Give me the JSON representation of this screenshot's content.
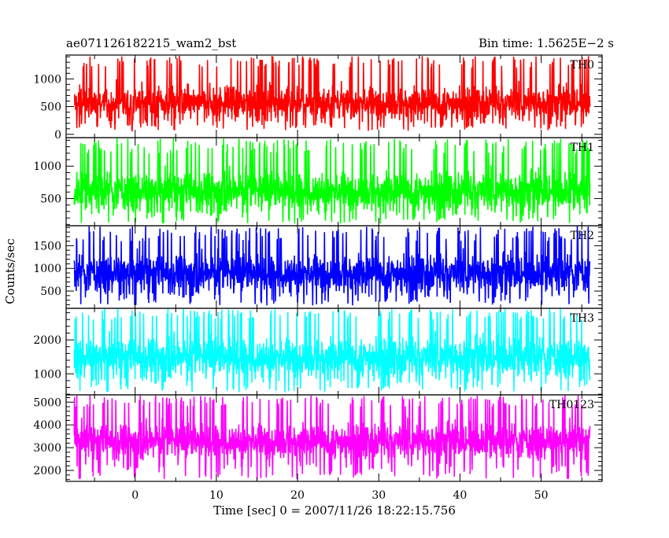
{
  "chart_data": {
    "type": "line",
    "title_left": "ae071126182215_wam2_bst",
    "title_right": "Bin time: 1.5625E−2 s",
    "xlabel": "Time [sec] 0 = 2007/11/26 18:22:15.756",
    "ylabel": "Counts/sec",
    "xlim": [
      -8.5,
      57.5
    ],
    "data_range": [
      -7.5,
      56.0
    ],
    "x_ticks": [
      0,
      10,
      20,
      30,
      40,
      50
    ],
    "series": [
      {
        "name": "TH0",
        "color": "#ff0000",
        "ylim": [
          -60,
          1430
        ],
        "y_ticks": [
          0,
          500,
          1000
        ],
        "y_minor_step": 100,
        "baseline": 570,
        "spread": 230,
        "low": 60,
        "high": 1420,
        "peak_typical": 1200
      },
      {
        "name": "TH1",
        "color": "#00ff00",
        "ylim": [
          80,
          1440
        ],
        "y_ticks": [
          500,
          1000
        ],
        "y_minor_step": 100,
        "baseline": 620,
        "spread": 230,
        "low": 110,
        "high": 1430,
        "peak_typical": 1200
      },
      {
        "name": "TH2",
        "color": "#0000ff",
        "ylim": [
          120,
          1940
        ],
        "y_ticks": [
          500,
          1000,
          1500
        ],
        "y_minor_step": 100,
        "baseline": 900,
        "spread": 320,
        "low": 180,
        "high": 1930,
        "peak_typical": 1600
      },
      {
        "name": "TH3",
        "color": "#00ffff",
        "ylim": [
          380,
          2930
        ],
        "y_ticks": [
          1000,
          2000
        ],
        "y_minor_step": 200,
        "baseline": 1500,
        "spread": 450,
        "low": 450,
        "high": 2920,
        "peak_typical": 2600
      },
      {
        "name": "TH0123",
        "color": "#ff00ff",
        "ylim": [
          1520,
          5320
        ],
        "y_ticks": [
          2000,
          3000,
          4000,
          5000
        ],
        "y_minor_step": 200,
        "baseline": 3300,
        "spread": 600,
        "low": 1600,
        "high": 5300,
        "peak_typical": 4800
      }
    ]
  }
}
